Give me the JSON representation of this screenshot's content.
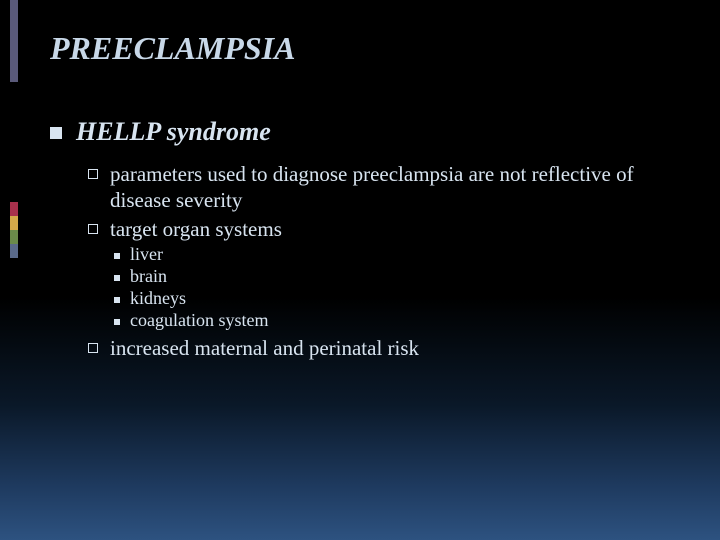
{
  "colors": {
    "title_color": "#c8d8e8",
    "text_color": "#d8e4f0",
    "bg_gradient_stops": [
      "#000000",
      "#000000",
      "#0a1828",
      "#1e3a5f",
      "#2d5280"
    ],
    "accent": [
      "#5a5a7a",
      "#a8304c",
      "#d4a84a",
      "#6a8a4a",
      "#5a6a8a"
    ]
  },
  "typography": {
    "title_fontsize": 32,
    "l1_fontsize": 26,
    "l2_fontsize": 21,
    "l3_fontsize": 18,
    "font_family": "Georgia, serif",
    "title_style": "italic bold",
    "l1_style": "italic bold"
  },
  "title": "PREECLAMPSIA",
  "l1": {
    "text": "HELLP syndrome",
    "children": [
      {
        "text": "parameters used to diagnose preeclampsia are not reflective of disease severity"
      },
      {
        "text": "target organ systems",
        "children": [
          {
            "text": "liver"
          },
          {
            "text": "brain"
          },
          {
            "text": "kidneys"
          },
          {
            "text": "coagulation system"
          }
        ]
      },
      {
        "text": "increased maternal and perinatal risk"
      }
    ]
  }
}
